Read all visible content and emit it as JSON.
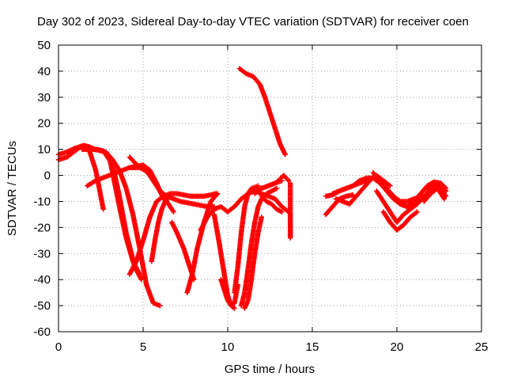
{
  "chart_data": {
    "type": "scatter",
    "title": "Day 302 of 2023, Sidereal Day-to-day VTEC variation (SDTVAR) for receiver coen",
    "xlabel": "GPS time / hours",
    "ylabel": "SDTVAR / TECUs",
    "xlim": [
      0,
      25
    ],
    "ylim": [
      -60,
      50
    ],
    "xticks": [
      0,
      5,
      10,
      15,
      20,
      25
    ],
    "yticks": [
      -60,
      -50,
      -40,
      -30,
      -20,
      -10,
      0,
      10,
      20,
      30,
      40,
      50
    ],
    "grid": true,
    "marker": "+",
    "color": "#ff0000",
    "series": [
      {
        "name": "s1",
        "x": [
          0.0,
          0.5,
          1.0,
          1.5,
          1.8,
          2.2,
          2.5,
          2.65
        ],
        "y": [
          8,
          9,
          10.5,
          11.5,
          10,
          2,
          -8,
          -13
        ]
      },
      {
        "name": "s2",
        "x": [
          0.0,
          0.5,
          1.0,
          1.3,
          1.5,
          1.8,
          2.2,
          2.7,
          3.2,
          3.6,
          4.0,
          4.5,
          4.9
        ],
        "y": [
          6,
          7,
          9.5,
          11,
          11.5,
          11,
          10,
          9,
          4,
          -8,
          -22,
          -35,
          -40
        ]
      },
      {
        "name": "s3",
        "x": [
          1.4,
          2.0,
          2.6,
          3.0,
          3.2,
          3.6,
          4.0,
          4.4,
          4.8
        ],
        "y": [
          10,
          10,
          9.5,
          7,
          1,
          -12,
          -24,
          -33,
          -38
        ]
      },
      {
        "name": "s4",
        "x": [
          1.7,
          2.2,
          2.6,
          3.0,
          3.4,
          3.8,
          4.2,
          4.6,
          5.0,
          5.4,
          5.8,
          6.2
        ],
        "y": [
          -4,
          -2,
          -1,
          0,
          1,
          2,
          3,
          3.5,
          4,
          2,
          -3,
          -9
        ]
      },
      {
        "name": "s5",
        "x": [
          2.3,
          2.8,
          3.2,
          3.6,
          4.0,
          4.4,
          4.8,
          5.2,
          5.6,
          6.0
        ],
        "y": [
          10,
          9,
          6,
          2,
          -5,
          -15,
          -28,
          -42,
          -49,
          -50
        ]
      },
      {
        "name": "s6",
        "x": [
          4.2,
          4.5,
          4.8,
          5.2,
          5.6,
          6.0,
          6.4,
          6.8,
          7.2,
          7.6,
          8.0,
          8.4,
          8.8,
          9.2
        ],
        "y": [
          7,
          5,
          3,
          2,
          -2,
          -6,
          -8,
          -9,
          -10,
          -10.5,
          -11,
          -11.5,
          -12,
          -12
        ]
      },
      {
        "name": "s7",
        "x": [
          4.2,
          4.5,
          4.8,
          5.1,
          5.4,
          5.7,
          6.0,
          6.3,
          6.6,
          6.8
        ],
        "y": [
          3,
          3,
          3,
          2,
          0,
          -3,
          -6,
          -9,
          -12,
          -14
        ]
      },
      {
        "name": "s8",
        "x": [
          4.2,
          4.6,
          5.0,
          5.4,
          5.8,
          6.2,
          6.6,
          7.0,
          7.4,
          7.8,
          8.2,
          8.6,
          9.0,
          9.3
        ],
        "y": [
          -38,
          -33,
          -25,
          -16,
          -10,
          -8,
          -7,
          -7,
          -7.5,
          -8,
          -8,
          -8,
          -7.5,
          -7
        ]
      },
      {
        "name": "s9",
        "x": [
          5.5,
          5.7,
          5.9,
          6.1,
          6.3,
          6.6
        ],
        "y": [
          -33,
          -25,
          -18,
          -13,
          -10,
          -8
        ]
      },
      {
        "name": "s10",
        "x": [
          6.7,
          7.0,
          7.4,
          7.7,
          8.0
        ],
        "y": [
          -18,
          -22,
          -28,
          -34,
          -40
        ]
      },
      {
        "name": "s11",
        "x": [
          7.6,
          7.9,
          8.2,
          8.6,
          9.0,
          9.4
        ],
        "y": [
          -45,
          -38,
          -28,
          -18,
          -10,
          -7
        ]
      },
      {
        "name": "s12",
        "x": [
          8.4,
          8.8,
          9.2,
          9.6,
          10.0,
          10.4,
          10.8,
          11.2,
          11.6,
          12.0,
          12.4,
          12.8,
          13.2
        ],
        "y": [
          -21,
          -16,
          -13,
          -12,
          -14,
          -12,
          -9,
          -7,
          -6,
          -5,
          -4,
          -3,
          -2
        ]
      },
      {
        "name": "s13",
        "x": [
          9.2,
          9.5,
          9.8,
          10.0,
          10.2,
          10.4,
          10.6
        ],
        "y": [
          -15,
          -26,
          -38,
          -46,
          -50,
          -49,
          -42
        ]
      },
      {
        "name": "s14",
        "x": [
          9.6,
          9.8,
          10.0,
          10.2,
          10.4
        ],
        "y": [
          -40,
          -44,
          -48,
          -50,
          -51
        ]
      },
      {
        "name": "s15",
        "x": [
          10.4,
          10.6,
          10.8,
          11.0,
          11.2,
          11.4,
          11.6,
          11.8
        ],
        "y": [
          -45,
          -35,
          -22,
          -12,
          -7,
          -5,
          -4.5,
          -4
        ]
      },
      {
        "name": "s16",
        "x": [
          10.8,
          11.0,
          11.2,
          11.4,
          11.6,
          11.8,
          12.0,
          12.3,
          12.6,
          12.9
        ],
        "y": [
          -50,
          -45,
          -36,
          -26,
          -18,
          -12,
          -9,
          -7,
          -6,
          -5
        ]
      },
      {
        "name": "s17",
        "x": [
          11.0,
          11.2,
          11.4,
          11.6,
          11.8,
          12.0
        ],
        "y": [
          -51,
          -48,
          -40,
          -30,
          -22,
          -16
        ]
      },
      {
        "name": "s18",
        "x": [
          10.7,
          11.1,
          11.5,
          11.9,
          12.2,
          12.5,
          12.8,
          13.1,
          13.4
        ],
        "y": [
          41,
          39,
          38,
          35,
          30,
          24,
          18,
          12,
          8
        ]
      },
      {
        "name": "s19",
        "x": [
          11.6,
          12.0,
          12.4,
          12.8,
          13.2,
          13.6
        ],
        "y": [
          -6,
          -7,
          -8,
          -9,
          -12,
          -14
        ]
      },
      {
        "name": "s20",
        "x": [
          11.6,
          12.0,
          12.4,
          12.8,
          13.0,
          13.3,
          13.6
        ],
        "y": [
          -7,
          -5,
          -4,
          -3,
          -2,
          0,
          -2
        ]
      },
      {
        "name": "s21",
        "x": [
          12.0,
          12.3,
          12.6,
          12.9,
          13.2
        ],
        "y": [
          -8,
          -10,
          -11,
          -13,
          -14
        ]
      },
      {
        "name": "s22",
        "x": [
          13.7,
          13.7,
          13.7,
          13.7,
          13.7
        ],
        "y": [
          -3,
          -14.5,
          -20,
          -24,
          -15
        ]
      },
      {
        "name": "s23",
        "x": [
          15.8,
          16.2,
          16.6,
          17.0,
          17.4,
          17.8,
          18.2,
          18.6,
          19.0,
          19.4,
          19.8,
          20.2,
          20.6,
          21.0,
          21.5
        ],
        "y": [
          -8,
          -7.5,
          -6,
          -5,
          -4,
          -3,
          -2,
          -1,
          -2,
          -5,
          -8,
          -10,
          -10,
          -9,
          -8
        ]
      },
      {
        "name": "s24",
        "x": [
          16.2,
          16.6,
          17.0,
          17.4,
          17.8,
          18.2,
          18.6,
          19.0,
          19.4,
          19.8,
          20.2,
          20.6,
          21.0,
          21.4,
          21.8,
          22.2,
          22.6,
          22.9
        ],
        "y": [
          -7,
          -6,
          -5,
          -4,
          -2,
          -1,
          -1,
          -3,
          -6,
          -9,
          -11,
          -12,
          -11,
          -9,
          -7,
          -5,
          -5,
          -6
        ]
      },
      {
        "name": "s25",
        "x": [
          15.8,
          16.2,
          16.6,
          17.0,
          17.4
        ],
        "y": [
          -15,
          -12,
          -9,
          -8,
          -7.5
        ]
      },
      {
        "name": "s26",
        "x": [
          16.4,
          16.8,
          17.2,
          17.6,
          18.0,
          18.4,
          18.8,
          19.2,
          19.6
        ],
        "y": [
          -9,
          -10,
          -11,
          -8,
          -5,
          -2,
          0,
          -2,
          -4
        ]
      },
      {
        "name": "s27",
        "x": [
          18.6,
          19.0,
          19.4,
          19.8,
          20.2,
          20.6,
          21.0,
          21.4,
          21.8,
          22.2,
          22.6,
          22.9
        ],
        "y": [
          1,
          -2,
          -6,
          -9,
          -11,
          -12,
          -10,
          -7,
          -4,
          -2.5,
          -3,
          -5
        ]
      },
      {
        "name": "s28",
        "x": [
          18.8,
          19.2,
          19.6,
          20.0,
          20.4,
          20.8,
          21.2,
          21.6,
          22.0,
          22.4,
          22.9
        ],
        "y": [
          -6,
          -10,
          -14,
          -18,
          -15,
          -13,
          -11,
          -8,
          -5,
          -3,
          -6
        ]
      },
      {
        "name": "s29",
        "x": [
          19.2,
          19.6,
          20.0,
          20.4,
          20.8,
          21.2
        ],
        "y": [
          -14,
          -18,
          -21,
          -19,
          -16,
          -14
        ]
      },
      {
        "name": "s30",
        "x": [
          21.6,
          22.0,
          22.4,
          22.8
        ],
        "y": [
          -10,
          -7,
          -5,
          -9
        ]
      },
      {
        "name": "s31",
        "x": [
          21.8,
          22.1,
          22.4,
          22.7,
          22.9
        ],
        "y": [
          -5,
          -4,
          -4.5,
          -6,
          -8
        ]
      }
    ]
  }
}
